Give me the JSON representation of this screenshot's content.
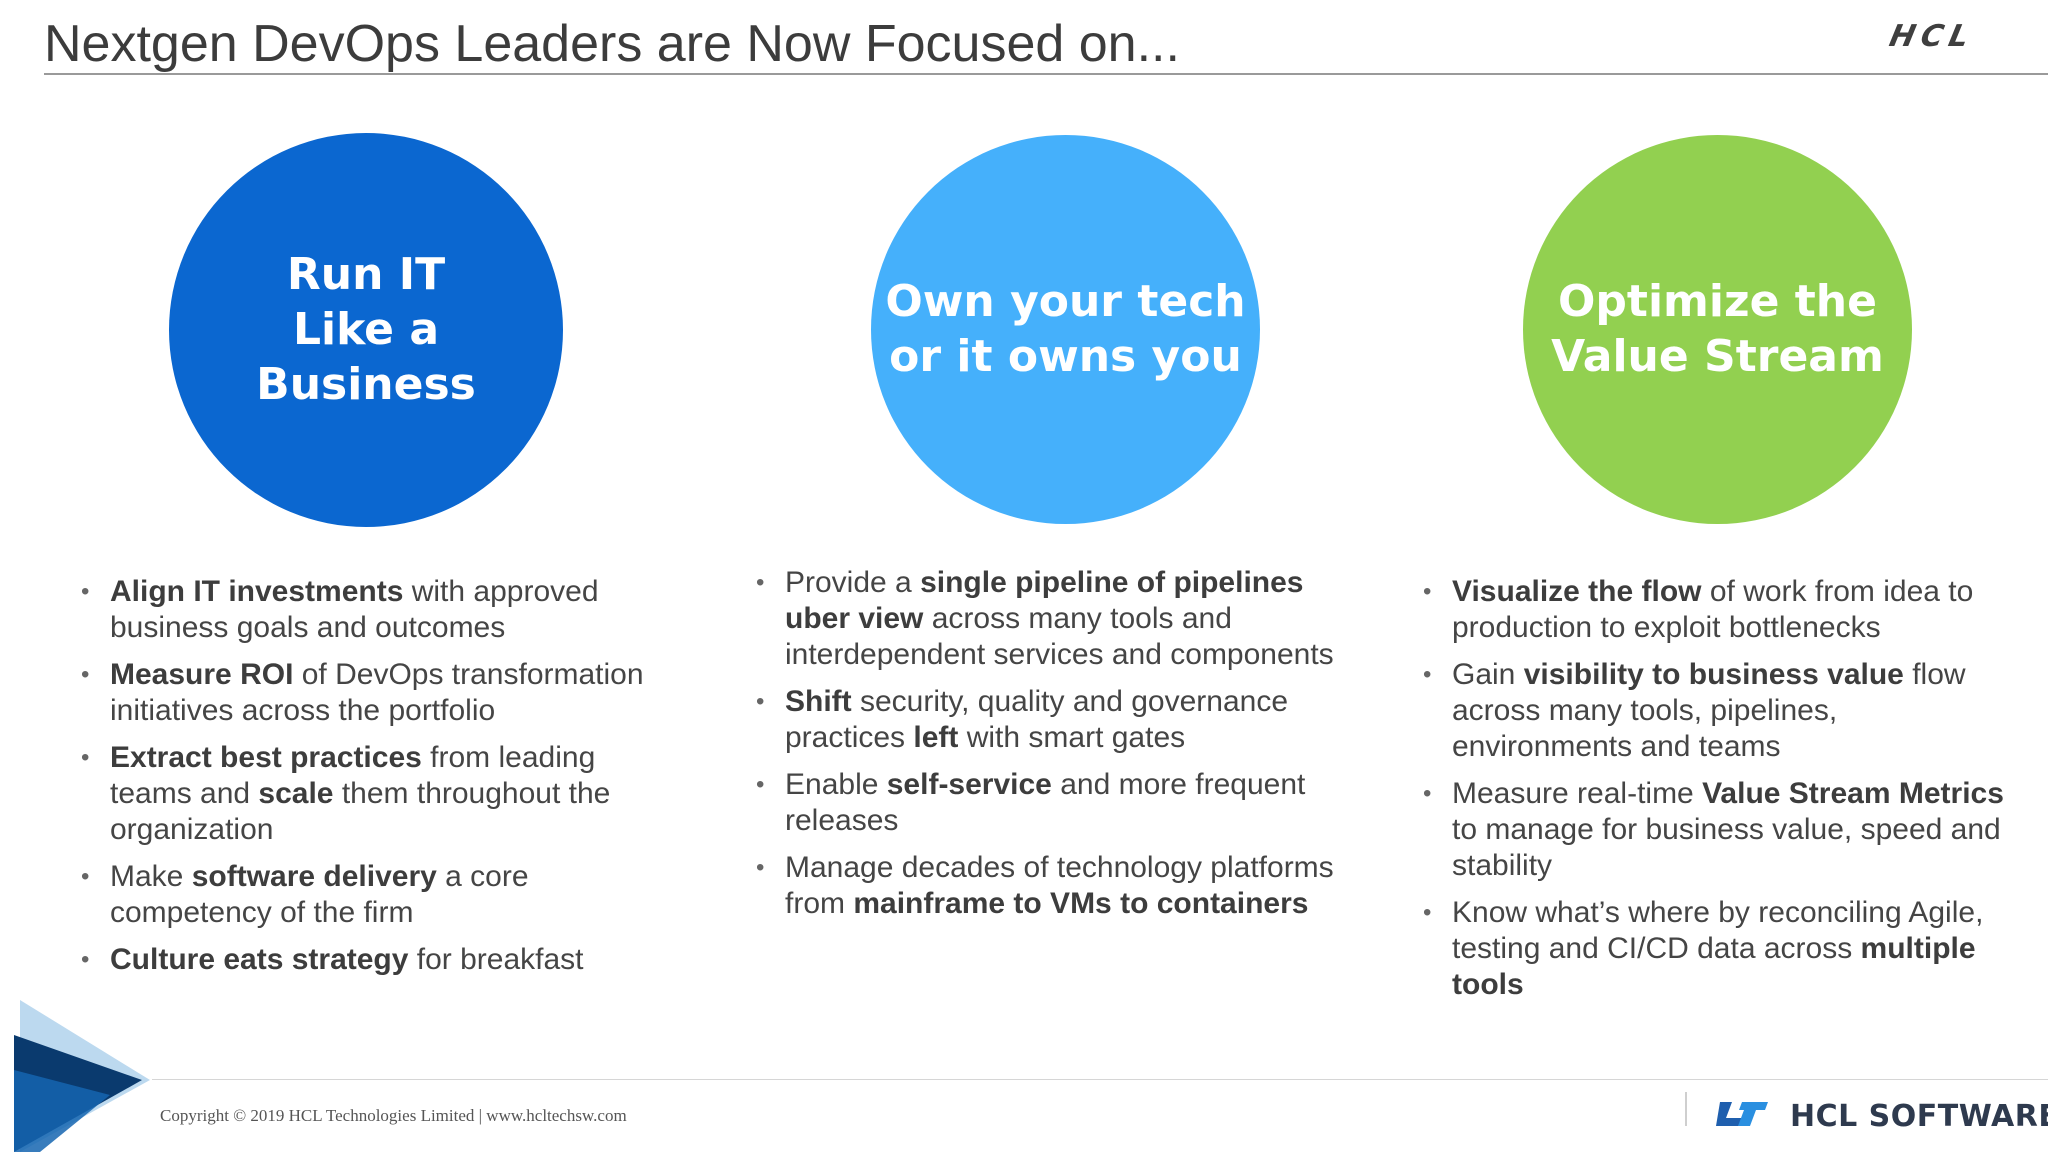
{
  "title": "Nextgen DevOps Leaders are Now Focused on...",
  "top_logo": "HCL",
  "colors": {
    "circle_1": "#0b67d0",
    "circle_2": "#45b0fb",
    "circle_3": "#92d050"
  },
  "columns": [
    {
      "heading": "Run IT\nLike a\nBusiness",
      "bullets": [
        [
          {
            "t": "Align IT investments",
            "b": true
          },
          {
            "t": " with approved business goals and outcomes"
          }
        ],
        [
          {
            "t": "Measure ROI",
            "b": true
          },
          {
            "t": " of DevOps transformation initiatives across the portfolio"
          }
        ],
        [
          {
            "t": "Extract best practices",
            "b": true
          },
          {
            "t": " from leading teams and "
          },
          {
            "t": "scale",
            "b": true
          },
          {
            "t": " them throughout the organization"
          }
        ],
        [
          {
            "t": "Make "
          },
          {
            "t": "software delivery",
            "b": true
          },
          {
            "t": " a core competency of the firm"
          }
        ],
        [
          {
            "t": "Culture eats strategy",
            "b": true
          },
          {
            "t": " for breakfast"
          }
        ]
      ]
    },
    {
      "heading": "Own your tech\nor it owns you",
      "bullets": [
        [
          {
            "t": "Provide a "
          },
          {
            "t": "single pipeline of pipelines uber view",
            "b": true
          },
          {
            "t": " across many tools and interdependent services and components"
          }
        ],
        [
          {
            "t": "Shift",
            "b": true
          },
          {
            "t": " security, quality and governance practices "
          },
          {
            "t": "left",
            "b": true
          },
          {
            "t": " with smart gates"
          }
        ],
        [
          {
            "t": "Enable "
          },
          {
            "t": "self-service",
            "b": true
          },
          {
            "t": " and more frequent releases"
          }
        ],
        [
          {
            "t": "Manage decades of technology platforms from "
          },
          {
            "t": "mainframe to VMs to containers",
            "b": true
          }
        ]
      ]
    },
    {
      "heading": "Optimize the\nValue Stream",
      "bullets": [
        [
          {
            "t": "Visualize the flow",
            "b": true
          },
          {
            "t": " of work from idea to production to exploit bottlenecks"
          }
        ],
        [
          {
            "t": "Gain "
          },
          {
            "t": "visibility to business value",
            "b": true
          },
          {
            "t": " flow across many tools, pipelines, environments and teams"
          }
        ],
        [
          {
            "t": "Measure real-time "
          },
          {
            "t": "Value Stream Metrics",
            "b": true
          },
          {
            "t": " to manage for business value, speed and stability"
          }
        ],
        [
          {
            "t": "Know what’s where by reconciling Agile, testing and CI/CD data across "
          },
          {
            "t": "multiple tools",
            "b": true
          }
        ]
      ]
    }
  ],
  "footer": {
    "copyright": "Copyright © 2019 HCL Technologies Limited  |  www.hcltechsw.com",
    "brand": "HCL SOFTWARE"
  }
}
